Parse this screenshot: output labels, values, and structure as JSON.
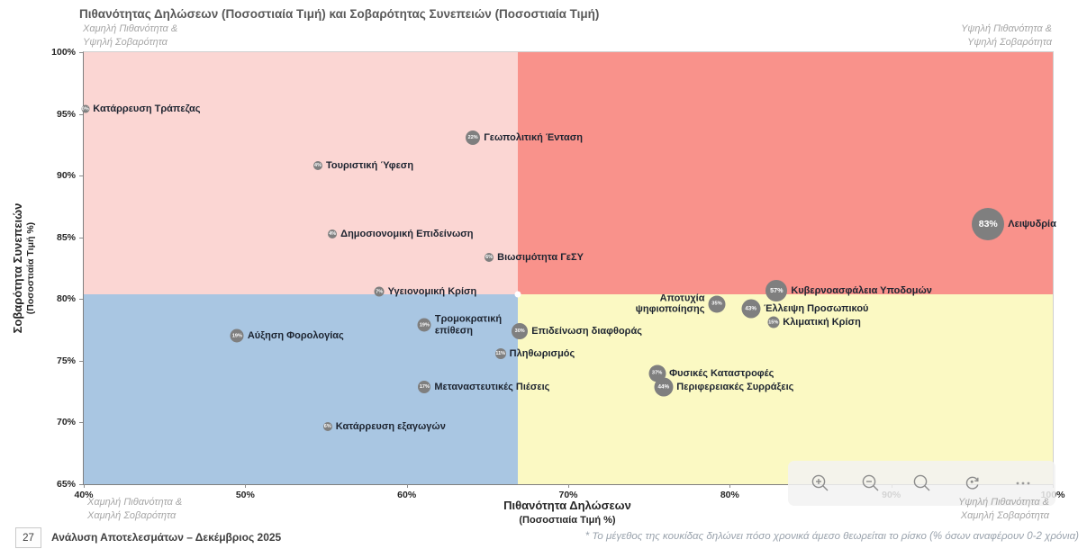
{
  "page": {
    "title": "Πιθανότητας Δηλώσεων (Ποσοστιαία Τιμή) και Σοβαρότητας Συνεπειών (Ποσοστιαία Τιμή)"
  },
  "chart_data": {
    "type": "scatter",
    "title": "Πιθανότητας Δηλώσεων (Ποσοστιαία Τιμή) και Σοβαρότητας Συνεπειών (Ποσοστιαία Τιμή)",
    "xlabel": "Πιθανότητα Δηλώσεων",
    "xlabel_sub": "(Ποσοστιαία Τιμή %)",
    "ylabel": "Σοβαρότητα Συνεπειών",
    "ylabel_sub": "(Ποσοστιαία Τιμή %)",
    "xlim": [
      40,
      100
    ],
    "ylim": [
      65,
      100
    ],
    "x_ticks": [
      "40%",
      "50%",
      "60%",
      "70%",
      "80%",
      "90%",
      "100%"
    ],
    "y_ticks": [
      "65%",
      "70%",
      "75%",
      "80%",
      "85%",
      "90%",
      "95%",
      "100%"
    ],
    "grid": false,
    "bubble_color": "#7f7f7f",
    "bubble_note": "bubble size = % reporting risk is immediate (0-2 years)",
    "quadrants": {
      "split_x": 66.9,
      "split_y": 80.4,
      "colors": {
        "top_left": "#fbd6d3",
        "top_right": "#f9928b",
        "bottom_left": "#a9c6e2",
        "bottom_right": "#fbf9c3"
      },
      "labels": {
        "top_left": "Χαμηλή Πιθανότητα &\nΥψηλή Σοβαρότητα",
        "top_right": "Υψηλή Πιθανότητα &\nΥψηλή Σοβαρότητα",
        "bottom_left": "Χαμηλή Πιθανότητα &\nΧαμηλή Σοβαρότητα",
        "bottom_right": "Υψηλή Πιθανότητα &\nΧαμηλή Σοβαρότητα"
      }
    },
    "points": [
      {
        "name": "Κατάρρευση Τράπεζας",
        "x": 40.1,
        "y": 95.4,
        "value": "0%",
        "size": 9,
        "side": "right"
      },
      {
        "name": "Γεωπολιτική Ένταση",
        "x": 64.1,
        "y": 93.1,
        "value": "22%",
        "size": 16,
        "side": "right"
      },
      {
        "name": "Τουριστική Ύφεση",
        "x": 54.5,
        "y": 90.8,
        "value": "4%",
        "size": 10,
        "side": "right"
      },
      {
        "name": "Δημοσιονομική Επιδείνωση",
        "x": 55.4,
        "y": 85.3,
        "value": "4%",
        "size": 10,
        "side": "right"
      },
      {
        "name": "Βιωσιμότητα ΓεΣΥ",
        "x": 65.1,
        "y": 83.4,
        "value": "6%",
        "size": 10,
        "side": "right"
      },
      {
        "name": "Λειψυδρία",
        "x": 96.0,
        "y": 86.1,
        "value": "83%",
        "size": 36,
        "side": "right"
      },
      {
        "name": "Υγειονομική Κρίση",
        "x": 58.3,
        "y": 80.6,
        "value": "7%",
        "size": 11,
        "side": "right"
      },
      {
        "name": "Κυβερνοασφάλεια Υποδομών",
        "x": 82.9,
        "y": 80.7,
        "value": "57%",
        "size": 24,
        "side": "right"
      },
      {
        "name": "Αποτυχία\nψηφιοποίησης",
        "x": 79.2,
        "y": 79.6,
        "value": "35%",
        "size": 19,
        "side": "left"
      },
      {
        "name": "Έλλειψη Προσωπικού",
        "x": 81.3,
        "y": 79.2,
        "value": "43%",
        "size": 21,
        "side": "right"
      },
      {
        "name": "Κλιματική Κρίση",
        "x": 82.7,
        "y": 78.1,
        "value": "15%",
        "size": 13,
        "side": "right"
      },
      {
        "name": "Τρομοκρατική\nεπίθεση",
        "x": 61.1,
        "y": 77.9,
        "value": "19%",
        "size": 15,
        "side": "right"
      },
      {
        "name": "Αύξηση Φορολογίας",
        "x": 49.5,
        "y": 77.0,
        "value": "19%",
        "size": 15,
        "side": "right"
      },
      {
        "name": "Επιδείνωση διαφθοράς",
        "x": 67.0,
        "y": 77.4,
        "value": "30%",
        "size": 18,
        "side": "right"
      },
      {
        "name": "Πληθωρισμός",
        "x": 65.8,
        "y": 75.6,
        "value": "11%",
        "size": 12,
        "side": "right"
      },
      {
        "name": "Φυσικές Καταστροφές",
        "x": 75.5,
        "y": 74.0,
        "value": "37%",
        "size": 19,
        "side": "right"
      },
      {
        "name": "Περιφερειακές Συρράξεις",
        "x": 75.9,
        "y": 72.9,
        "value": "44%",
        "size": 21,
        "side": "right"
      },
      {
        "name": "Μεταναστευτικές Πιέσεις",
        "x": 61.1,
        "y": 72.9,
        "value": "17%",
        "size": 14,
        "side": "right"
      },
      {
        "name": "Κατάρρευση εξαγωγών",
        "x": 55.1,
        "y": 69.7,
        "value": "6%",
        "size": 10,
        "side": "right"
      }
    ]
  },
  "toolbar": {
    "icons": [
      "zoom-in",
      "zoom-out",
      "zoom-select",
      "reset",
      "more"
    ]
  },
  "footer": {
    "page_number": "27",
    "text": "Ανάλυση Αποτελεσμάτων – Δεκέμβριος 2025",
    "footnote": "* Το μέγεθος της κουκίδας δηλώνει πόσο χρονικά άμεσο θεωρείται το ρίσκο (% όσων αναφέρουν 0-2 χρόνια)"
  }
}
